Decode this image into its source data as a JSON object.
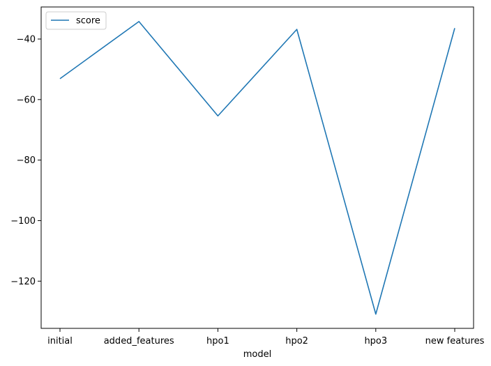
{
  "chart_data": {
    "type": "line",
    "categories": [
      "initial",
      "added_features",
      "hpo1",
      "hpo2",
      "hpo3",
      "new features"
    ],
    "series": [
      {
        "name": "score",
        "values": [
          -53.1,
          -34.2,
          -65.4,
          -36.8,
          -130.9,
          -36.4
        ],
        "color": "#1f77b4"
      }
    ],
    "xlabel": "model",
    "ylabel": "",
    "ylim": [
      -135.6,
      -29.4
    ],
    "yticks": [
      -40,
      -60,
      -80,
      -100,
      -120
    ],
    "ytick_labels": [
      "−40",
      "−60",
      "−80",
      "−100",
      "−120"
    ],
    "grid": false,
    "legend": "upper-left"
  }
}
